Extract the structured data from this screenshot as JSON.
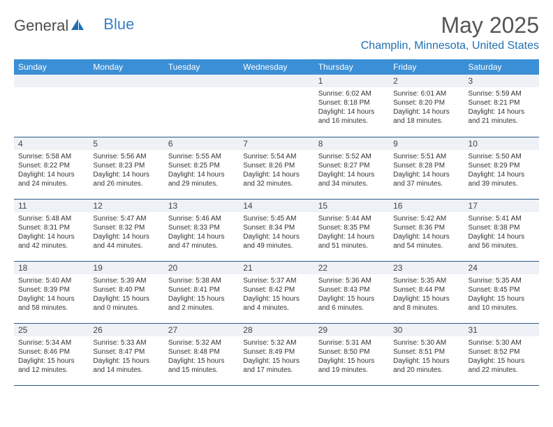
{
  "logo": {
    "part1": "General",
    "part2": "Blue"
  },
  "title": "May 2025",
  "location": "Champlin, Minnesota, United States",
  "colors": {
    "header_bg": "#3b8fd6",
    "header_text": "#ffffff",
    "row_rule": "#2b5a87",
    "daynum_bg": "#eef1f5",
    "location_color": "#1f6fb2",
    "title_color": "#555555",
    "body_text": "#333333",
    "logo_gray": "#4d4d4d",
    "logo_blue": "#3b7fc4"
  },
  "typography": {
    "month_title_size": 32,
    "location_size": 16,
    "weekday_size": 12,
    "daynum_size": 12,
    "body_size": 10,
    "font_family": "Arial"
  },
  "weekdays": [
    "Sunday",
    "Monday",
    "Tuesday",
    "Wednesday",
    "Thursday",
    "Friday",
    "Saturday"
  ],
  "weeks": [
    [
      null,
      null,
      null,
      null,
      {
        "n": "1",
        "sr": "6:02 AM",
        "ss": "8:18 PM",
        "dl": "14 hours and 16 minutes."
      },
      {
        "n": "2",
        "sr": "6:01 AM",
        "ss": "8:20 PM",
        "dl": "14 hours and 18 minutes."
      },
      {
        "n": "3",
        "sr": "5:59 AM",
        "ss": "8:21 PM",
        "dl": "14 hours and 21 minutes."
      }
    ],
    [
      {
        "n": "4",
        "sr": "5:58 AM",
        "ss": "8:22 PM",
        "dl": "14 hours and 24 minutes."
      },
      {
        "n": "5",
        "sr": "5:56 AM",
        "ss": "8:23 PM",
        "dl": "14 hours and 26 minutes."
      },
      {
        "n": "6",
        "sr": "5:55 AM",
        "ss": "8:25 PM",
        "dl": "14 hours and 29 minutes."
      },
      {
        "n": "7",
        "sr": "5:54 AM",
        "ss": "8:26 PM",
        "dl": "14 hours and 32 minutes."
      },
      {
        "n": "8",
        "sr": "5:52 AM",
        "ss": "8:27 PM",
        "dl": "14 hours and 34 minutes."
      },
      {
        "n": "9",
        "sr": "5:51 AM",
        "ss": "8:28 PM",
        "dl": "14 hours and 37 minutes."
      },
      {
        "n": "10",
        "sr": "5:50 AM",
        "ss": "8:29 PM",
        "dl": "14 hours and 39 minutes."
      }
    ],
    [
      {
        "n": "11",
        "sr": "5:48 AM",
        "ss": "8:31 PM",
        "dl": "14 hours and 42 minutes."
      },
      {
        "n": "12",
        "sr": "5:47 AM",
        "ss": "8:32 PM",
        "dl": "14 hours and 44 minutes."
      },
      {
        "n": "13",
        "sr": "5:46 AM",
        "ss": "8:33 PM",
        "dl": "14 hours and 47 minutes."
      },
      {
        "n": "14",
        "sr": "5:45 AM",
        "ss": "8:34 PM",
        "dl": "14 hours and 49 minutes."
      },
      {
        "n": "15",
        "sr": "5:44 AM",
        "ss": "8:35 PM",
        "dl": "14 hours and 51 minutes."
      },
      {
        "n": "16",
        "sr": "5:42 AM",
        "ss": "8:36 PM",
        "dl": "14 hours and 54 minutes."
      },
      {
        "n": "17",
        "sr": "5:41 AM",
        "ss": "8:38 PM",
        "dl": "14 hours and 56 minutes."
      }
    ],
    [
      {
        "n": "18",
        "sr": "5:40 AM",
        "ss": "8:39 PM",
        "dl": "14 hours and 58 minutes."
      },
      {
        "n": "19",
        "sr": "5:39 AM",
        "ss": "8:40 PM",
        "dl": "15 hours and 0 minutes."
      },
      {
        "n": "20",
        "sr": "5:38 AM",
        "ss": "8:41 PM",
        "dl": "15 hours and 2 minutes."
      },
      {
        "n": "21",
        "sr": "5:37 AM",
        "ss": "8:42 PM",
        "dl": "15 hours and 4 minutes."
      },
      {
        "n": "22",
        "sr": "5:36 AM",
        "ss": "8:43 PM",
        "dl": "15 hours and 6 minutes."
      },
      {
        "n": "23",
        "sr": "5:35 AM",
        "ss": "8:44 PM",
        "dl": "15 hours and 8 minutes."
      },
      {
        "n": "24",
        "sr": "5:35 AM",
        "ss": "8:45 PM",
        "dl": "15 hours and 10 minutes."
      }
    ],
    [
      {
        "n": "25",
        "sr": "5:34 AM",
        "ss": "8:46 PM",
        "dl": "15 hours and 12 minutes."
      },
      {
        "n": "26",
        "sr": "5:33 AM",
        "ss": "8:47 PM",
        "dl": "15 hours and 14 minutes."
      },
      {
        "n": "27",
        "sr": "5:32 AM",
        "ss": "8:48 PM",
        "dl": "15 hours and 15 minutes."
      },
      {
        "n": "28",
        "sr": "5:32 AM",
        "ss": "8:49 PM",
        "dl": "15 hours and 17 minutes."
      },
      {
        "n": "29",
        "sr": "5:31 AM",
        "ss": "8:50 PM",
        "dl": "15 hours and 19 minutes."
      },
      {
        "n": "30",
        "sr": "5:30 AM",
        "ss": "8:51 PM",
        "dl": "15 hours and 20 minutes."
      },
      {
        "n": "31",
        "sr": "5:30 AM",
        "ss": "8:52 PM",
        "dl": "15 hours and 22 minutes."
      }
    ]
  ],
  "labels": {
    "sunrise": "Sunrise:",
    "sunset": "Sunset:",
    "daylight": "Daylight:"
  }
}
